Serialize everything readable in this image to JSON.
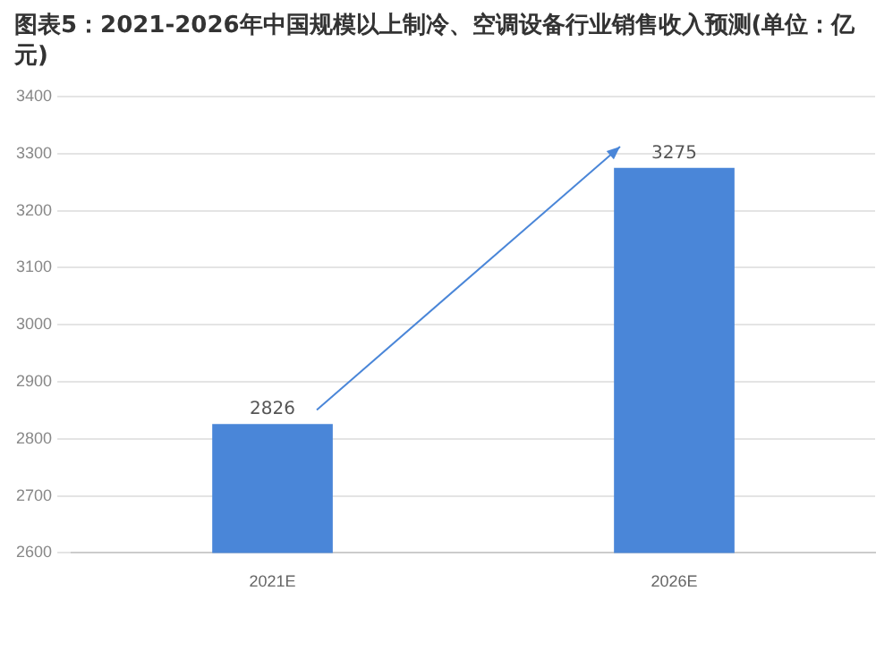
{
  "chart_data": {
    "type": "bar",
    "title": "图表5：2021-2026年中国规模以上制冷、空调设备行业销售收入预测(单位：亿元)",
    "categories": [
      "2021E",
      "2026E"
    ],
    "values": [
      2826,
      3275
    ],
    "color": "#4a86d8",
    "ylim": [
      2600,
      3400
    ],
    "yticks": [
      2600,
      2700,
      2800,
      2900,
      3000,
      3100,
      3200,
      3300,
      3400
    ],
    "grid": "y",
    "data_labels": true
  }
}
